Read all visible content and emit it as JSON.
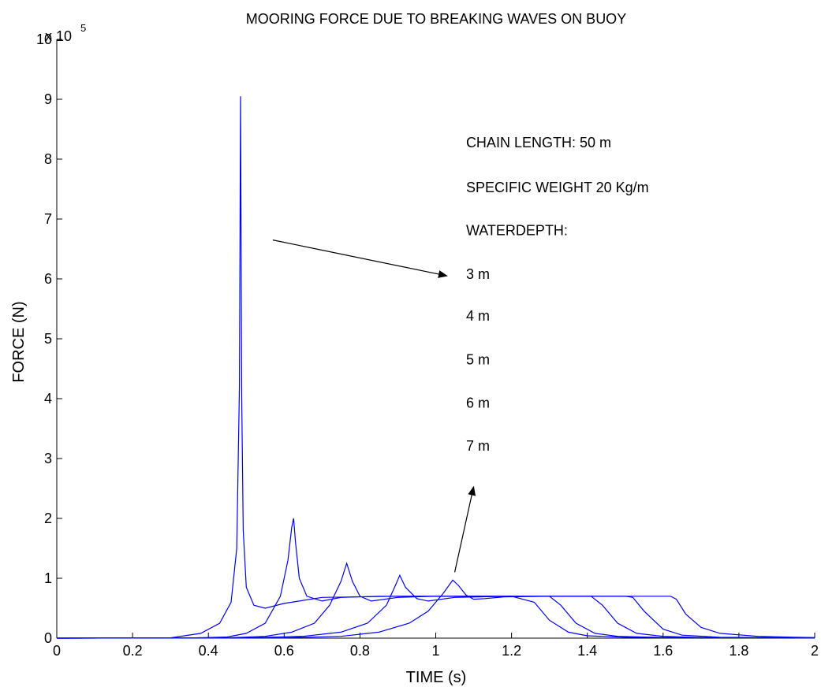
{
  "chart_data": {
    "type": "line",
    "title": "MOORING FORCE DUE TO BREAKING WAVES ON BUOY",
    "xlabel": "TIME (s)",
    "ylabel": "FORCE (N)",
    "xlim": [
      0,
      2
    ],
    "ylim": [
      0,
      1000000
    ],
    "y_exponent_label": {
      "base": "x 10",
      "exponent": "5"
    },
    "x_ticks": [
      0,
      0.2,
      0.4,
      0.6,
      0.8,
      1,
      1.2,
      1.4,
      1.6,
      1.8,
      2
    ],
    "x_tick_labels": [
      "0",
      "0.2",
      "0.4",
      "0.6",
      "0.8",
      "1",
      "1.2",
      "1.4",
      "1.6",
      "1.8",
      "2"
    ],
    "y_ticks": [
      0,
      100000,
      200000,
      300000,
      400000,
      500000,
      600000,
      700000,
      800000,
      900000,
      1000000
    ],
    "y_tick_labels": [
      "0",
      "1",
      "2",
      "3",
      "4",
      "5",
      "6",
      "7",
      "8",
      "9",
      "10"
    ],
    "grid": false,
    "line_color": "#0000ff",
    "series": [
      {
        "x": [
          0,
          0.3,
          0.38,
          0.43,
          0.46,
          0.475,
          0.482,
          0.485,
          0.488,
          0.492,
          0.5,
          0.52,
          0.55,
          0.6,
          0.7,
          0.9,
          1.1,
          1.2,
          1.26,
          1.3,
          1.35,
          1.4,
          1.5,
          2
        ],
        "y": [
          0,
          500,
          8000,
          25000,
          60000,
          150000,
          420000,
          905000,
          400000,
          180000,
          85000,
          55000,
          50000,
          58000,
          68000,
          70000,
          70000,
          70000,
          60000,
          30000,
          10000,
          4000,
          1500,
          500
        ]
      },
      {
        "x": [
          0,
          0.35,
          0.45,
          0.5,
          0.55,
          0.59,
          0.61,
          0.62,
          0.625,
          0.63,
          0.64,
          0.66,
          0.7,
          0.75,
          0.85,
          1.0,
          1.2,
          1.3,
          1.33,
          1.37,
          1.42,
          1.48,
          1.6,
          2
        ],
        "y": [
          0,
          300,
          2000,
          8000,
          25000,
          70000,
          130000,
          185000,
          200000,
          160000,
          100000,
          70000,
          62000,
          68000,
          70000,
          70000,
          70000,
          70000,
          55000,
          25000,
          8000,
          3000,
          1000,
          500
        ]
      },
      {
        "x": [
          0,
          0.45,
          0.55,
          0.62,
          0.68,
          0.72,
          0.75,
          0.765,
          0.78,
          0.8,
          0.83,
          0.9,
          1.0,
          1.2,
          1.41,
          1.44,
          1.48,
          1.53,
          1.6,
          1.7,
          2
        ],
        "y": [
          0,
          500,
          3000,
          10000,
          25000,
          55000,
          95000,
          125000,
          95000,
          70000,
          62000,
          68000,
          70000,
          70000,
          70000,
          55000,
          25000,
          8000,
          3000,
          1000,
          500
        ]
      },
      {
        "x": [
          0,
          0.5,
          0.65,
          0.75,
          0.82,
          0.87,
          0.895,
          0.905,
          0.92,
          0.95,
          0.98,
          1.05,
          1.2,
          1.5,
          1.52,
          1.55,
          1.6,
          1.65,
          1.75,
          2
        ],
        "y": [
          0,
          500,
          3000,
          10000,
          25000,
          55000,
          90000,
          105000,
          85000,
          66000,
          62000,
          68000,
          70000,
          70000,
          68000,
          45000,
          15000,
          5000,
          1500,
          500
        ]
      },
      {
        "x": [
          0,
          0.6,
          0.75,
          0.85,
          0.93,
          0.98,
          1.02,
          1.045,
          1.06,
          1.08,
          1.1,
          1.13,
          1.18,
          1.3,
          1.5,
          1.62,
          1.635,
          1.66,
          1.7,
          1.75,
          1.85,
          1.95,
          2
        ],
        "y": [
          0,
          500,
          3000,
          10000,
          25000,
          45000,
          75000,
          97000,
          88000,
          72000,
          65000,
          66000,
          69000,
          70000,
          70000,
          70000,
          65000,
          40000,
          18000,
          8000,
          3000,
          1500,
          1000
        ]
      }
    ],
    "annotations": [
      {
        "text": "CHAIN LENGTH:   50 m",
        "x": 1.08,
        "y": 820000
      },
      {
        "text": "SPECIFIC WEIGHT 20 Kg/m",
        "x": 1.08,
        "y": 745000
      },
      {
        "text": "WATERDEPTH:",
        "x": 1.08,
        "y": 673000
      },
      {
        "text": "3 m",
        "x": 1.08,
        "y": 600000
      },
      {
        "text": "4 m",
        "x": 1.08,
        "y": 530000
      },
      {
        "text": "5 m",
        "x": 1.08,
        "y": 457000
      },
      {
        "text": "6 m",
        "x": 1.08,
        "y": 385000
      },
      {
        "text": "7 m",
        "x": 1.08,
        "y": 313000
      }
    ],
    "arrows": [
      {
        "from": [
          0.57,
          665000
        ],
        "to": [
          1.03,
          605000
        ]
      },
      {
        "from": [
          1.05,
          110000
        ],
        "to": [
          1.1,
          253000
        ]
      }
    ]
  }
}
